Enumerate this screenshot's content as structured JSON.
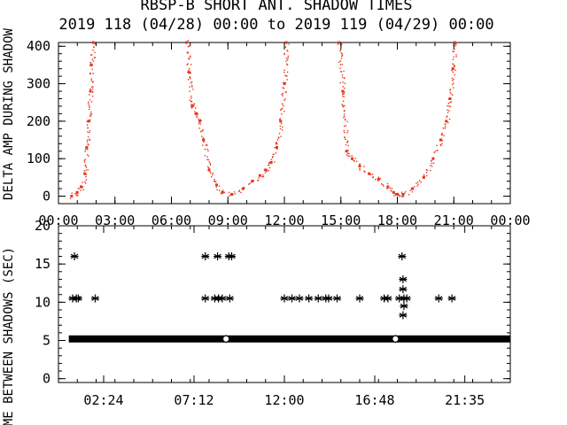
{
  "title": "RBSP-B SHORT ANT. SHADOW TIMES",
  "subtitle": "2019 118 (04/28) 00:00 to 2019 119 (04/29) 00:00",
  "colors": {
    "red_points": "#e8341c",
    "axes": "#000000",
    "background": "#ffffff"
  },
  "chart_data": [
    {
      "type": "scatter",
      "ylabel": "DELTA AMP DURING SHADOW",
      "xlim": [
        "00:00",
        "24:00"
      ],
      "ylim": [
        -20,
        410
      ],
      "x_tick_labels": [
        "00:00",
        "03:00",
        "06:00",
        "09:00",
        "12:00",
        "15:00",
        "18:00",
        "21:00",
        "00:00"
      ],
      "y_ticks": [
        0,
        100,
        200,
        300,
        400
      ],
      "series": [
        {
          "color": "#e8341c",
          "segments": [
            {
              "x": [
                0.7,
                1.0,
                1.2,
                1.4,
                1.5,
                1.6,
                1.7,
                1.75,
                1.85
              ],
              "y": [
                0,
                10,
                25,
                60,
                130,
                200,
                280,
                350,
                410
              ]
            },
            {
              "x": [
                6.8,
                6.95,
                7.1,
                7.3,
                7.5,
                7.7,
                8.0,
                8.4,
                8.7,
                9.2,
                9.8,
                10.3,
                10.7,
                11.0,
                11.3,
                11.6,
                11.8,
                12.0,
                12.1
              ],
              "y": [
                410,
                330,
                240,
                220,
                200,
                150,
                70,
                30,
                10,
                5,
                20,
                40,
                55,
                70,
                90,
                130,
                200,
                300,
                410
              ]
            },
            {
              "x": [
                14.9,
                15.1,
                15.3,
                15.6,
                16.0,
                16.5,
                17.0,
                17.5,
                17.8,
                18.0,
                18.3,
                18.8,
                19.4,
                19.9,
                20.3,
                20.6,
                20.8,
                20.95,
                21.05
              ],
              "y": [
                410,
                280,
                120,
                100,
                80,
                60,
                45,
                25,
                10,
                5,
                5,
                20,
                50,
                100,
                150,
                200,
                260,
                340,
                410
              ]
            }
          ]
        }
      ]
    },
    {
      "type": "scatter",
      "ylabel": "TIME BETWEEN SHADOWS (SEC)",
      "xlim": [
        "00:00",
        "24:00"
      ],
      "ylim": [
        -0.5,
        20
      ],
      "x_tick_labels": [
        "02:24",
        "07:12",
        "12:00",
        "16:48",
        "21:35"
      ],
      "y_ticks": [
        0,
        5,
        10,
        15,
        20
      ],
      "series": [
        {
          "marker": "asterisk",
          "color": "#000000",
          "baseline": {
            "y": 5.2,
            "x_range": [
              0.55,
              24.0
            ]
          },
          "points": [
            {
              "x": 0.85,
              "y": 16.0
            },
            {
              "x": 0.75,
              "y": 10.5
            },
            {
              "x": 0.95,
              "y": 10.5
            },
            {
              "x": 1.05,
              "y": 10.5
            },
            {
              "x": 1.95,
              "y": 10.5
            },
            {
              "x": 7.8,
              "y": 16.0
            },
            {
              "x": 8.45,
              "y": 16.0
            },
            {
              "x": 9.05,
              "y": 16.0
            },
            {
              "x": 9.2,
              "y": 16.0
            },
            {
              "x": 7.8,
              "y": 10.5
            },
            {
              "x": 8.3,
              "y": 10.5
            },
            {
              "x": 8.5,
              "y": 10.5
            },
            {
              "x": 8.7,
              "y": 10.5
            },
            {
              "x": 9.1,
              "y": 10.5
            },
            {
              "x": 8.9,
              "y": 5.2
            },
            {
              "x": 12.0,
              "y": 10.5
            },
            {
              "x": 12.4,
              "y": 10.5
            },
            {
              "x": 12.8,
              "y": 10.5
            },
            {
              "x": 13.3,
              "y": 10.5
            },
            {
              "x": 13.8,
              "y": 10.5
            },
            {
              "x": 14.2,
              "y": 10.5
            },
            {
              "x": 14.35,
              "y": 10.5
            },
            {
              "x": 14.8,
              "y": 10.5
            },
            {
              "x": 16.0,
              "y": 10.5
            },
            {
              "x": 17.3,
              "y": 10.5
            },
            {
              "x": 17.5,
              "y": 10.5
            },
            {
              "x": 18.1,
              "y": 10.5
            },
            {
              "x": 18.35,
              "y": 10.5
            },
            {
              "x": 18.5,
              "y": 10.5
            },
            {
              "x": 18.25,
              "y": 16.0
            },
            {
              "x": 18.3,
              "y": 13.0
            },
            {
              "x": 18.3,
              "y": 11.7
            },
            {
              "x": 18.35,
              "y": 9.5
            },
            {
              "x": 18.3,
              "y": 8.3
            },
            {
              "x": 17.9,
              "y": 5.2
            },
            {
              "x": 20.2,
              "y": 10.5
            },
            {
              "x": 20.9,
              "y": 10.5
            }
          ]
        }
      ]
    }
  ]
}
